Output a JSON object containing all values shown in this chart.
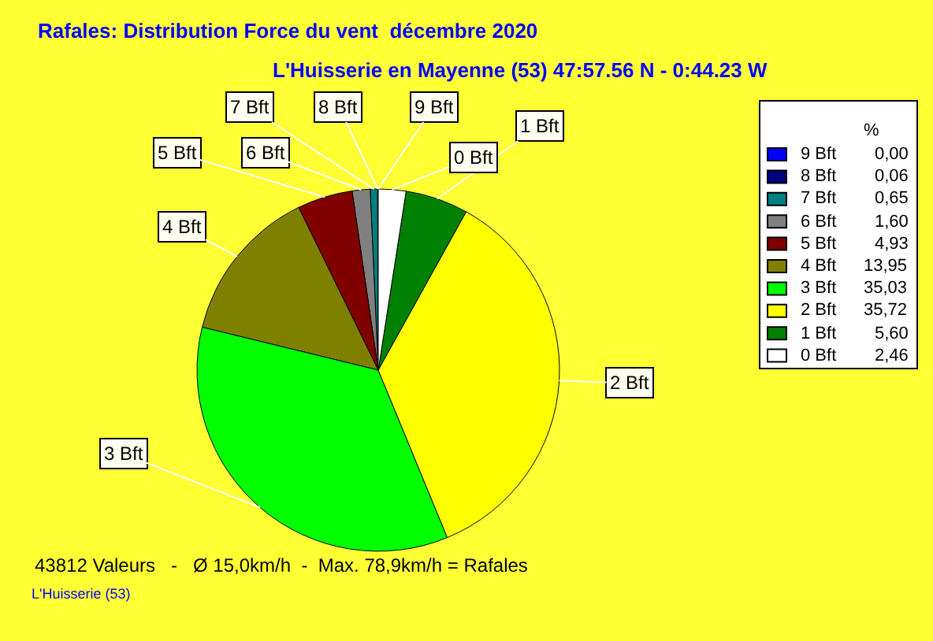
{
  "chart_data": {
    "type": "pie",
    "title": "Rafales: Distribution Force du vent  décembre 2020",
    "subtitle": "L'Huisserie en Mayenne (53) 47:57.56 N - 0:44.23 W",
    "legend_title": "%",
    "categories": [
      "9 Bft",
      "8 Bft",
      "7 Bft",
      "6 Bft",
      "5 Bft",
      "4 Bft",
      "3 Bft",
      "2 Bft",
      "1 Bft",
      "0 Bft"
    ],
    "values": [
      0.0,
      0.06,
      0.65,
      1.6,
      4.93,
      13.95,
      35.03,
      35.72,
      5.6,
      2.46
    ],
    "value_labels": [
      "0,00",
      "0,06",
      "0,65",
      "1,60",
      "4,93",
      "13,95",
      "35,03",
      "35,72",
      "5,60",
      "2,46"
    ],
    "colors": [
      "#0000ff",
      "#000080",
      "#008080",
      "#808080",
      "#800000",
      "#808000",
      "#00ff00",
      "#ffff00",
      "#008000",
      "#ffffff"
    ],
    "legend": "right",
    "annotations": [
      "43812 Valeurs   -   Ø 15,0km/h  -  Max. 78,9km/h = Rafales",
      "L'Huisserie (53)"
    ]
  }
}
